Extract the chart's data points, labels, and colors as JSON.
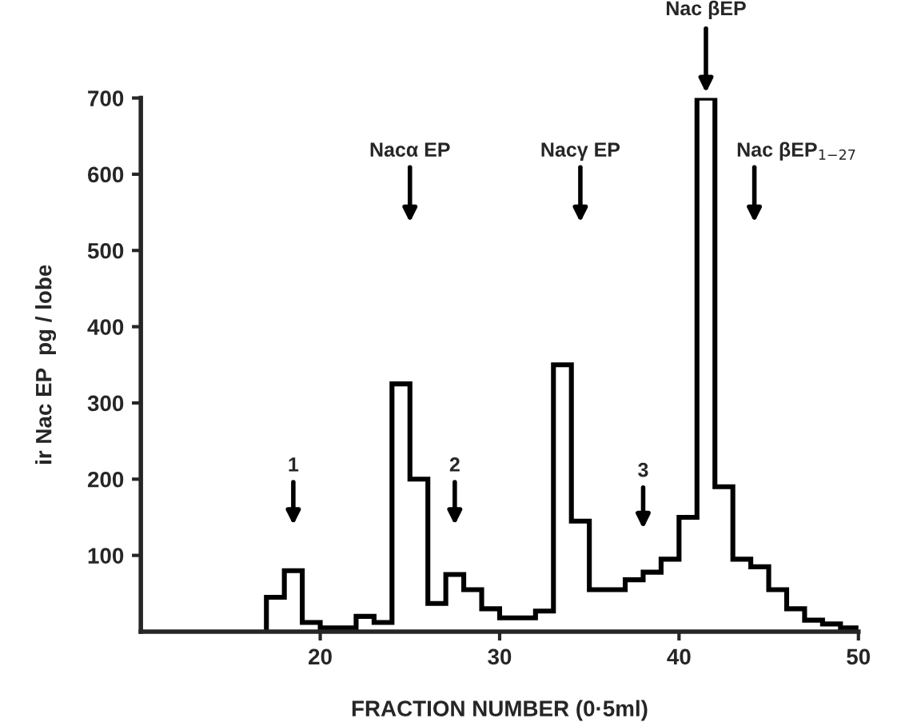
{
  "chart_data": {
    "type": "histogram",
    "xlabel": "FRACTION NUMBER (0·5ml)",
    "ylabel": "ir Nac EP  pg / lobe",
    "bins": [
      17,
      18,
      19,
      20,
      21,
      22,
      23,
      24,
      25,
      26,
      27,
      28,
      29,
      30,
      31,
      32,
      33,
      34,
      35,
      36,
      37,
      38,
      39,
      40,
      41,
      42,
      43,
      44,
      45,
      46,
      47,
      48,
      49,
      50
    ],
    "values": [
      45,
      80,
      12,
      5,
      5,
      20,
      12,
      325,
      200,
      37,
      75,
      55,
      30,
      18,
      18,
      27,
      350,
      145,
      55,
      55,
      68,
      78,
      95,
      150,
      700,
      190,
      95,
      85,
      55,
      30,
      15,
      10,
      5
    ],
    "color": "#000000",
    "xlim": [
      10,
      50
    ],
    "xticks": [
      20,
      30,
      40,
      50
    ],
    "ylim": [
      0,
      700
    ],
    "yticks": [
      100,
      200,
      300,
      400,
      500,
      600,
      700
    ],
    "grid": false,
    "legend": false,
    "annotations": [
      "1",
      "Nacα EP",
      "2",
      "Nacγ EP",
      "3",
      "Nac βEP",
      "Nac βEP$_{1−27}$"
    ]
  }
}
